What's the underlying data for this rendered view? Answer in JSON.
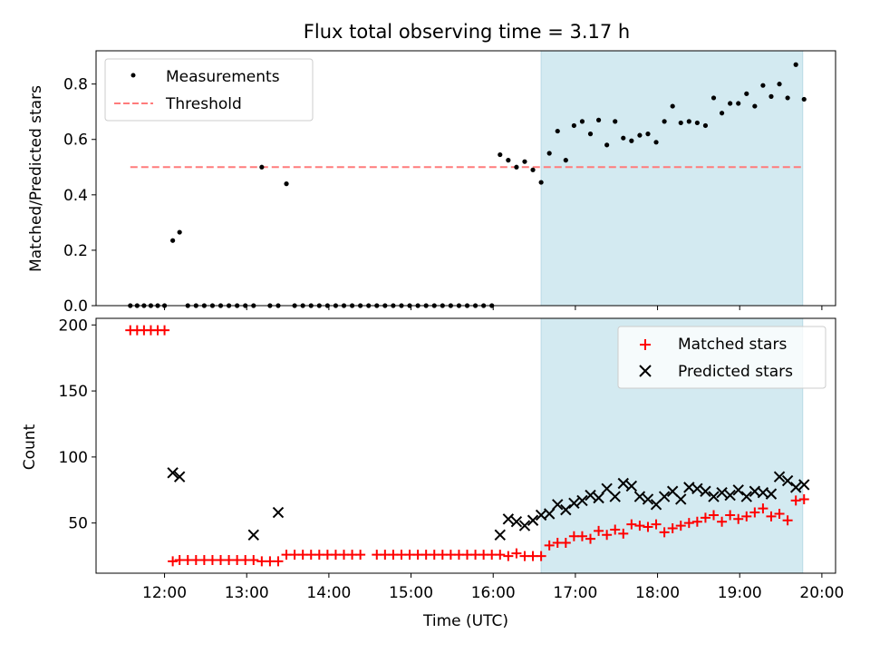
{
  "chart_data": [
    {
      "type": "scatter",
      "title": "Flux total observing time = 3.17 h",
      "xlabel": "",
      "ylabel": "Matched/Predicted stars",
      "xlim": [
        "11:10",
        "20:10"
      ],
      "ylim": [
        0,
        0.92
      ],
      "yticks": [
        0.0,
        0.2,
        0.4,
        0.6,
        0.8
      ],
      "ytick_labels": [
        "0.0",
        "0.2",
        "0.4",
        "0.6",
        "0.8"
      ],
      "highlight_span": [
        "16:35",
        "19:46"
      ],
      "highlight_color": "#d3eaf1",
      "threshold": {
        "name": "Threshold",
        "value": 0.5,
        "x_range": [
          "11:35",
          "19:46"
        ],
        "color": "#ff7b7b"
      },
      "legend_position": "top-left",
      "series": [
        {
          "name": "Measurements",
          "color": "#000000",
          "marker": "dot",
          "x": [
            "11:35",
            "11:40",
            "11:45",
            "11:50",
            "11:55",
            "12:00",
            "12:06",
            "12:11",
            "12:17",
            "12:23",
            "12:29",
            "12:35",
            "12:41",
            "12:47",
            "12:53",
            "12:59",
            "13:05",
            "13:11",
            "13:17",
            "13:23",
            "13:29",
            "13:35",
            "13:41",
            "13:47",
            "13:53",
            "13:59",
            "14:05",
            "14:11",
            "14:17",
            "14:23",
            "14:29",
            "14:35",
            "14:41",
            "14:47",
            "14:53",
            "14:59",
            "15:05",
            "15:11",
            "15:17",
            "15:23",
            "15:29",
            "15:35",
            "15:41",
            "15:47",
            "15:53",
            "15:59",
            "16:05",
            "16:11",
            "16:17",
            "16:23",
            "16:29",
            "16:35",
            "16:41",
            "16:47",
            "16:53",
            "16:59",
            "17:05",
            "17:11",
            "17:17",
            "17:23",
            "17:29",
            "17:35",
            "17:41",
            "17:47",
            "17:53",
            "17:59",
            "18:05",
            "18:11",
            "18:17",
            "18:23",
            "18:29",
            "18:35",
            "18:41",
            "18:47",
            "18:53",
            "18:59",
            "19:05",
            "19:11",
            "19:17",
            "19:23",
            "19:29",
            "19:35",
            "19:41",
            "19:47"
          ],
          "y": [
            0,
            0,
            0,
            0,
            0,
            0,
            0.235,
            0.265,
            0,
            0,
            0,
            0,
            0,
            0,
            0,
            0,
            0,
            0.5,
            0,
            0,
            0.44,
            0,
            0,
            0,
            0,
            0,
            0,
            0,
            0,
            0,
            0,
            0,
            0,
            0,
            0,
            0,
            0,
            0,
            0,
            0,
            0,
            0,
            0,
            0,
            0,
            0,
            0.545,
            0.525,
            0.5,
            0.52,
            0.49,
            0.445,
            0.55,
            0.63,
            0.525,
            0.65,
            0.665,
            0.62,
            0.67,
            0.58,
            0.665,
            0.605,
            0.595,
            0.615,
            0.62,
            0.59,
            0.665,
            0.72,
            0.66,
            0.665,
            0.66,
            0.65,
            0.75,
            0.695,
            0.73,
            0.73,
            0.765,
            0.72,
            0.795,
            0.755,
            0.8,
            0.75,
            0.87,
            0.745
          ]
        }
      ]
    },
    {
      "type": "scatter",
      "xlabel": "Time (UTC)",
      "ylabel": "Count",
      "xlim": [
        "11:10",
        "20:10"
      ],
      "xticks": [
        "12:00",
        "13:00",
        "14:00",
        "15:00",
        "16:00",
        "17:00",
        "18:00",
        "19:00",
        "20:00"
      ],
      "ylim": [
        12,
        205
      ],
      "yticks": [
        50,
        100,
        150,
        200
      ],
      "highlight_span": [
        "16:35",
        "19:46"
      ],
      "highlight_color": "#d3eaf1",
      "legend_position": "top-right",
      "series": [
        {
          "name": "Matched stars",
          "color": "#ff0000",
          "marker": "plus",
          "x": [
            "11:35",
            "11:40",
            "11:45",
            "11:50",
            "11:55",
            "12:00",
            "12:06",
            "12:11",
            "12:17",
            "12:23",
            "12:29",
            "12:35",
            "12:41",
            "12:47",
            "12:53",
            "12:59",
            "13:05",
            "13:11",
            "13:17",
            "13:23",
            "13:29",
            "13:35",
            "13:41",
            "13:47",
            "13:53",
            "13:59",
            "14:05",
            "14:11",
            "14:17",
            "14:23",
            "14:35",
            "14:41",
            "14:47",
            "14:53",
            "14:59",
            "15:05",
            "15:11",
            "15:17",
            "15:23",
            "15:29",
            "15:35",
            "15:41",
            "15:47",
            "15:53",
            "15:59",
            "16:05",
            "16:11",
            "16:17",
            "16:23",
            "16:29",
            "16:35",
            "16:41",
            "16:47",
            "16:53",
            "16:59",
            "17:05",
            "17:11",
            "17:17",
            "17:23",
            "17:29",
            "17:35",
            "17:41",
            "17:47",
            "17:53",
            "17:59",
            "18:05",
            "18:11",
            "18:17",
            "18:23",
            "18:29",
            "18:35",
            "18:41",
            "18:47",
            "18:53",
            "18:59",
            "19:05",
            "19:11",
            "19:17",
            "19:23",
            "19:29",
            "19:35",
            "19:41",
            "19:47"
          ],
          "y": [
            196,
            196,
            196,
            196,
            196,
            196,
            21,
            22,
            22,
            22,
            22,
            22,
            22,
            22,
            22,
            22,
            22,
            21,
            21,
            21,
            26,
            26,
            26,
            26,
            26,
            26,
            26,
            26,
            26,
            26,
            26,
            26,
            26,
            26,
            26,
            26,
            26,
            26,
            26,
            26,
            26,
            26,
            26,
            26,
            26,
            26,
            25,
            27,
            25,
            25,
            25,
            33,
            35,
            35,
            40,
            40,
            38,
            44,
            41,
            45,
            42,
            49,
            48,
            47,
            49,
            43,
            46,
            48,
            50,
            51,
            54,
            56,
            51,
            56,
            53,
            55,
            58,
            61,
            55,
            57,
            52,
            67,
            68
          ]
        },
        {
          "name": "Predicted stars",
          "color": "#000000",
          "marker": "x",
          "x": [
            "12:06",
            "12:11",
            "13:05",
            "13:23",
            "16:05",
            "16:11",
            "16:17",
            "16:23",
            "16:29",
            "16:35",
            "16:41",
            "16:47",
            "16:53",
            "16:59",
            "17:05",
            "17:11",
            "17:17",
            "17:23",
            "17:29",
            "17:35",
            "17:41",
            "17:47",
            "17:53",
            "17:59",
            "18:05",
            "18:11",
            "18:17",
            "18:23",
            "18:29",
            "18:35",
            "18:41",
            "18:47",
            "18:53",
            "18:59",
            "19:05",
            "19:11",
            "19:17",
            "19:23",
            "19:29",
            "19:35",
            "19:41",
            "19:47"
          ],
          "y": [
            88,
            85,
            41,
            58,
            41,
            53,
            51,
            48,
            52,
            56,
            57,
            64,
            60,
            65,
            67,
            71,
            69,
            76,
            70,
            80,
            78,
            70,
            68,
            64,
            70,
            74,
            68,
            77,
            76,
            74,
            70,
            73,
            71,
            75,
            70,
            74,
            73,
            72,
            85,
            82,
            77,
            79
          ]
        }
      ]
    }
  ]
}
